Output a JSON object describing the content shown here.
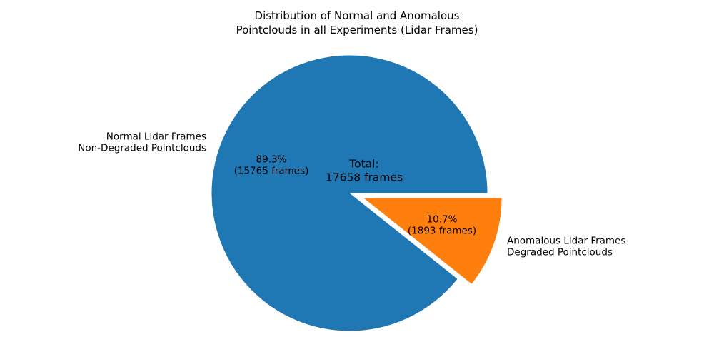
{
  "chart_data": {
    "type": "pie",
    "title": "Distribution of Normal and Anomalous\nPointclouds in all Experiments (Lidar Frames)",
    "center_text": "Total:\n17658 frames",
    "total_frames": 17658,
    "start_angle": 0,
    "counterclock": true,
    "legend_position": "none",
    "background_color": "#ffffff",
    "text_color": "#000000",
    "slices": [
      {
        "label": "Normal Lidar Frames\nNon-Degraded Pointclouds",
        "value": 15765,
        "pct": 89.3,
        "pct_label": "89.3%\n(15765 frames)",
        "color": "#1f77b4",
        "explode": 0
      },
      {
        "label": "Anomalous Lidar Frames\nDegraded Pointclouds",
        "value": 1893,
        "pct": 10.7,
        "pct_label": "10.7%\n(1893 frames)",
        "color": "#ff7f0e",
        "explode": 0.11
      }
    ]
  }
}
